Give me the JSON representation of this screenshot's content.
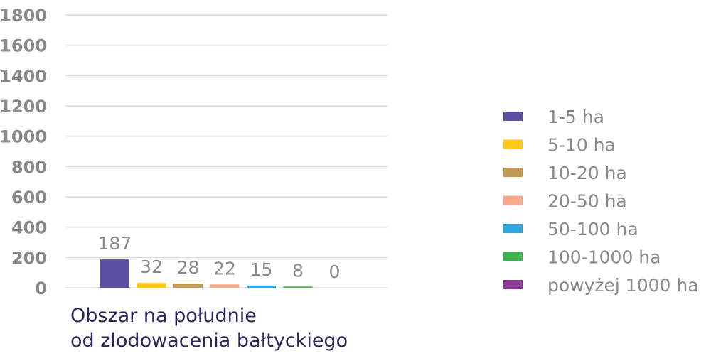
{
  "chart_data": {
    "type": "bar",
    "categories": [
      "Obszar na południe od zlodowacenia bałtyckiego"
    ],
    "category_label_lines": [
      "Obszar na południe",
      "od zlodowacenia bałtyckiego"
    ],
    "series": [
      {
        "name": "1-5 ha",
        "values": [
          187
        ],
        "color": "#5a4fa3"
      },
      {
        "name": "5-10 ha",
        "values": [
          32
        ],
        "color": "#ffc61a"
      },
      {
        "name": "10-20 ha",
        "values": [
          28
        ],
        "color": "#c09a55"
      },
      {
        "name": "20-50 ha",
        "values": [
          22
        ],
        "color": "#f7a98a"
      },
      {
        "name": "50-100 ha",
        "values": [
          15
        ],
        "color": "#2aa9e0"
      },
      {
        "name": "100-1000 ha",
        "values": [
          8
        ],
        "color": "#3fb34f"
      },
      {
        "name": "powyżej 1000 ha",
        "values": [
          0
        ],
        "color": "#8b3a96"
      }
    ],
    "ylim": [
      0,
      1800
    ],
    "yticks": [
      0,
      200,
      400,
      600,
      800,
      1000,
      1200,
      1400,
      1600,
      1800
    ],
    "grid": true,
    "legend_position": "right",
    "data_labels": true
  }
}
